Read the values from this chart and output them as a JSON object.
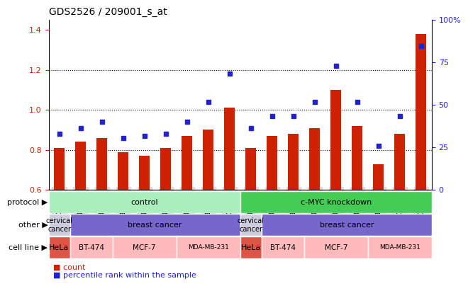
{
  "title": "GDS2526 / 209001_s_at",
  "samples": [
    "GSM136095",
    "GSM136097",
    "GSM136079",
    "GSM136081",
    "GSM136083",
    "GSM136085",
    "GSM136087",
    "GSM136089",
    "GSM136091",
    "GSM136096",
    "GSM136098",
    "GSM136080",
    "GSM136082",
    "GSM136084",
    "GSM136086",
    "GSM136088",
    "GSM136090",
    "GSM136092"
  ],
  "bar_values": [
    0.81,
    0.84,
    0.86,
    0.79,
    0.77,
    0.81,
    0.87,
    0.9,
    1.01,
    0.81,
    0.87,
    0.88,
    0.91,
    1.1,
    0.92,
    0.73,
    0.88,
    1.38
  ],
  "dot_values": [
    0.88,
    0.91,
    0.94,
    0.86,
    0.87,
    0.88,
    0.94,
    1.04,
    1.18,
    0.91,
    0.97,
    0.97,
    1.04,
    1.22,
    1.04,
    0.82,
    0.97,
    1.32
  ],
  "bar_color": "#cc2200",
  "dot_color": "#2222cc",
  "ylim_left": [
    0.6,
    1.45
  ],
  "ylim_right": [
    0,
    100
  ],
  "yticks_left": [
    0.6,
    0.8,
    1.0,
    1.2,
    1.4
  ],
  "yticks_right": [
    0,
    25,
    50,
    75,
    100
  ],
  "ytick_labels_right": [
    "0",
    "25",
    "50",
    "75",
    "100%"
  ],
  "hlines": [
    0.8,
    1.0,
    1.2
  ],
  "protocol_color_control": "#aaeebb",
  "protocol_color_cmyc": "#44cc55",
  "other_color_cervical": "#ccccdd",
  "other_color_breast": "#7766cc",
  "cell_color_hela": "#dd5544",
  "cell_color_other": "#ffbbbb",
  "legend_count_color": "#cc2200",
  "legend_dot_color": "#2222cc",
  "ylabel_left_color": "#cc2200",
  "ylabel_right_color": "#2222cc"
}
